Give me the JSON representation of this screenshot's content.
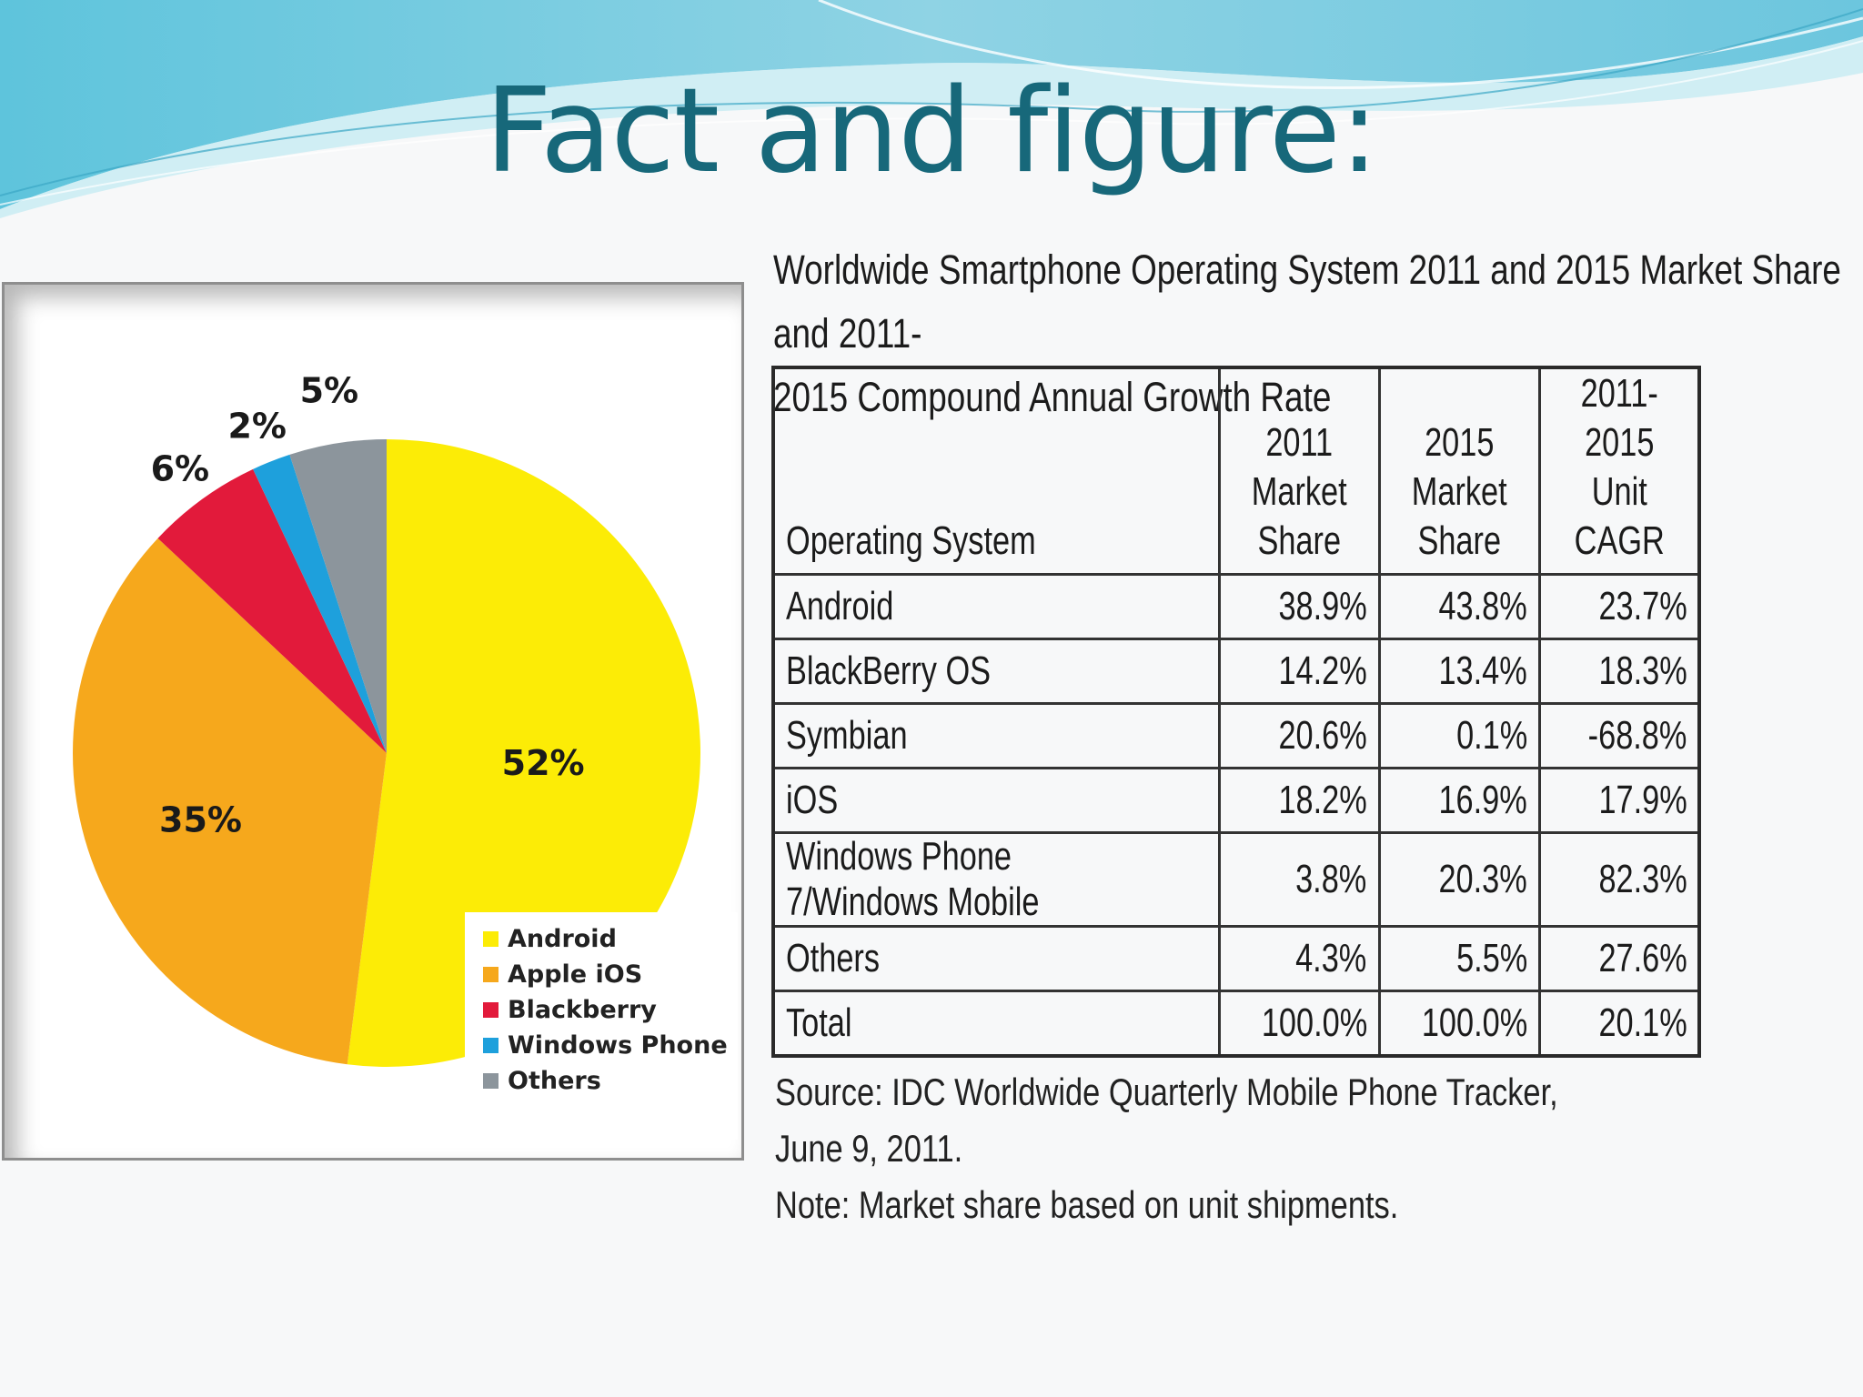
{
  "slide": {
    "title": "Fact and figure:"
  },
  "chart_data": [
    {
      "type": "pie",
      "slices": [
        {
          "label": "Android",
          "value": 52,
          "display": "52%",
          "color": "#fcec06"
        },
        {
          "label": "Apple iOS",
          "value": 35,
          "display": "35%",
          "color": "#f6a81c"
        },
        {
          "label": "Blackberry",
          "value": 6,
          "display": "6%",
          "color": "#e21a3b"
        },
        {
          "label": "Windows Phone",
          "value": 2,
          "display": "2%",
          "color": "#1ea0dc"
        },
        {
          "label": "Others",
          "value": 5,
          "display": "5%",
          "color": "#8c959c"
        }
      ],
      "legend": [
        "Android",
        "Apple iOS",
        "Blackberry",
        "Windows Phone",
        "Others"
      ],
      "legend_placement": "bottom-right"
    },
    {
      "type": "table",
      "title": "Worldwide Smartphone Operating System 2011 and 2015 Market Share and 2011-2015 Compound Annual Growth Rate",
      "columns": [
        "Operating System",
        "2011 Market Share",
        "2015 Market Share",
        "2011-2015 Unit CAGR"
      ],
      "rows": [
        [
          "Android",
          "38.9%",
          "43.8%",
          "23.7%"
        ],
        [
          "BlackBerry OS",
          "14.2%",
          "13.4%",
          "18.3%"
        ],
        [
          "Symbian",
          "20.6%",
          "0.1%",
          "-68.8%"
        ],
        [
          "iOS",
          "18.2%",
          "16.9%",
          "17.9%"
        ],
        [
          "Windows Phone 7/Windows Mobile",
          "3.8%",
          "20.3%",
          "82.3%"
        ],
        [
          "Others",
          "4.3%",
          "5.5%",
          "27.6%"
        ],
        [
          "Total",
          "100.0%",
          "100.0%",
          "20.1%"
        ]
      ]
    }
  ],
  "table_title_lines": [
    "Worldwide Smartphone Operating System 2011 and 2015 Market Share and 2011-",
    "2015 Compound Annual Growth Rate"
  ],
  "table_headers": [
    [
      "Operating System"
    ],
    [
      "2011",
      "Market",
      "Share"
    ],
    [
      "2015",
      "Market",
      "Share"
    ],
    [
      "2011-2015",
      "Unit CAGR"
    ]
  ],
  "source": "Source: IDC Worldwide Quarterly Mobile Phone Tracker, June 9, 2011.",
  "note": "Note:  Market share based on unit shipments."
}
